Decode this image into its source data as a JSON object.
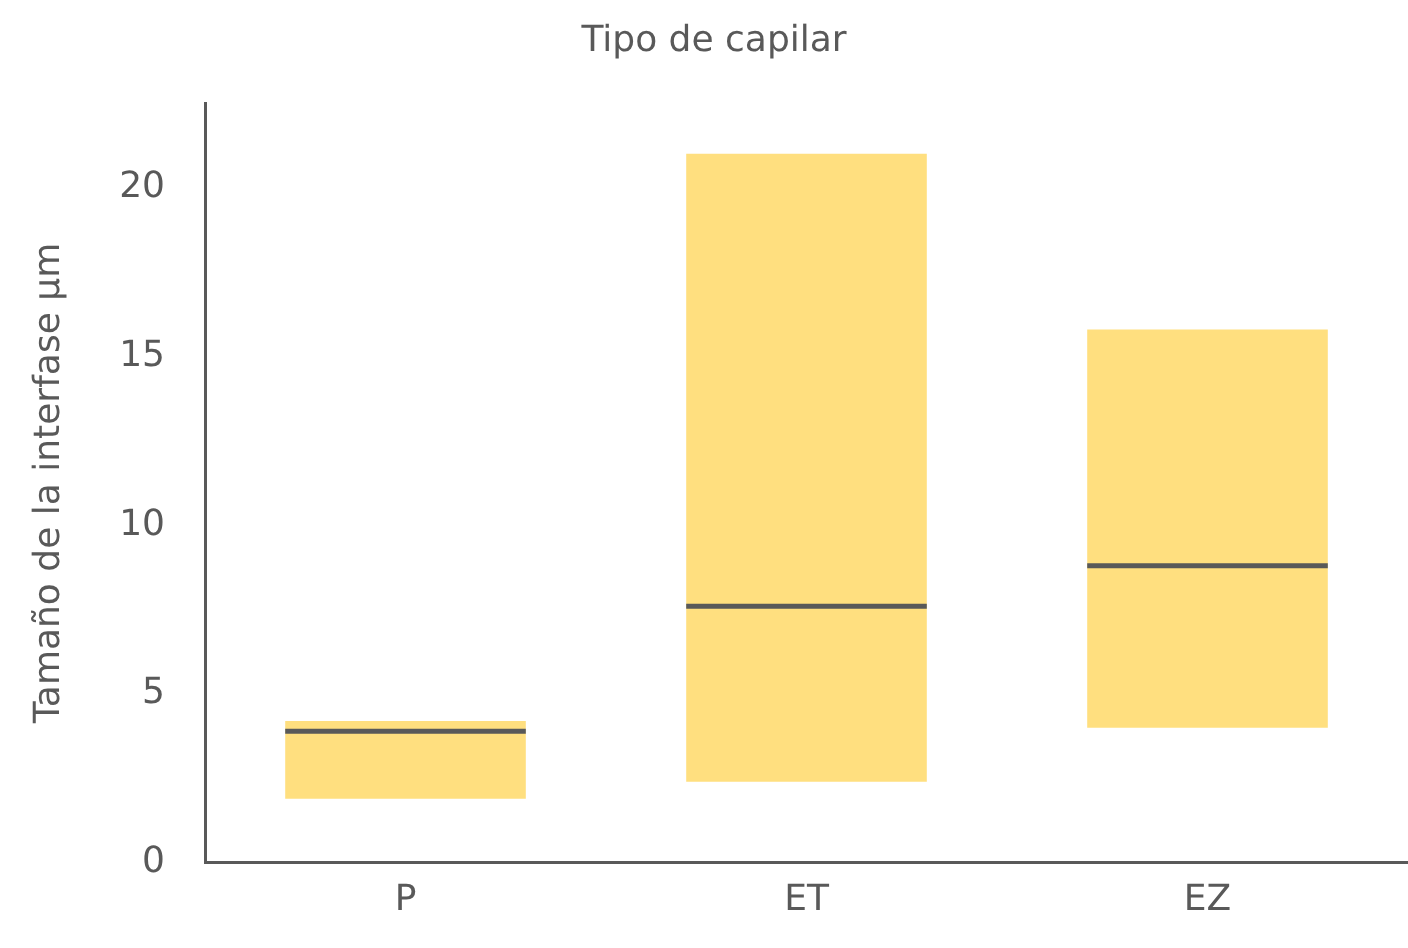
{
  "chart_data": {
    "type": "box",
    "title": "Tipo de capilar",
    "ylabel": "Tamaño de la interfase µm",
    "categories": [
      "P",
      "ET",
      "EZ"
    ],
    "boxes": [
      {
        "low": 1.9,
        "q1": 1.9,
        "median": 3.9,
        "q3": 4.2,
        "high": 4.2
      },
      {
        "low": 2.4,
        "q1": 2.4,
        "median": 7.6,
        "q3": 21.0,
        "high": 21.0
      },
      {
        "low": 4.0,
        "q1": 4.0,
        "median": 8.8,
        "q3": 15.8,
        "high": 15.8
      }
    ],
    "color": "#ffdf7f",
    "ylim": [
      0,
      22.5
    ],
    "yticks": [
      0,
      5,
      10,
      15,
      20
    ],
    "grid": false,
    "legend": false
  }
}
